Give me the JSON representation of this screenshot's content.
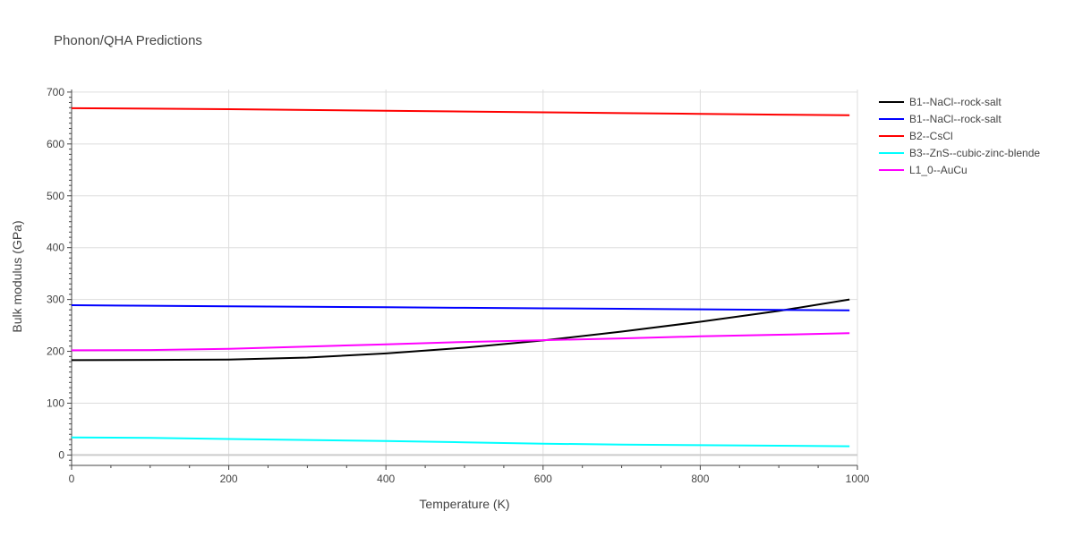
{
  "chart_data": {
    "type": "line",
    "title": "Phonon/QHA Predictions",
    "xlabel": "Temperature (K)",
    "ylabel": "Bulk modulus (GPa)",
    "xlim": [
      0,
      1000
    ],
    "ylim": [
      -20,
      705
    ],
    "xticks": [
      0,
      200,
      400,
      600,
      800,
      1000
    ],
    "yticks": [
      0,
      100,
      200,
      300,
      400,
      500,
      600,
      700
    ],
    "grid": true,
    "legend_position": "top-right",
    "series": [
      {
        "name": "B1--NaCl--rock-salt",
        "color": "#000000",
        "x": [
          0,
          100,
          200,
          300,
          400,
          500,
          600,
          700,
          800,
          900,
          990
        ],
        "y": [
          183,
          183.5,
          184,
          188,
          196,
          207,
          221,
          238,
          257,
          278,
          300
        ]
      },
      {
        "name": "B1--NaCl--rock-salt",
        "color": "#0000ff",
        "x": [
          0,
          100,
          200,
          300,
          400,
          500,
          600,
          700,
          800,
          900,
          990
        ],
        "y": [
          289,
          288,
          287,
          286,
          285,
          284,
          283,
          282,
          281,
          280,
          279
        ]
      },
      {
        "name": "B2--CsCl",
        "color": "#ff0000",
        "x": [
          0,
          100,
          200,
          300,
          400,
          500,
          600,
          700,
          800,
          900,
          990
        ],
        "y": [
          669,
          668,
          667,
          665.5,
          664,
          662.5,
          661,
          659.5,
          658,
          656.5,
          655.5
        ]
      },
      {
        "name": "B3--ZnS--cubic-zinc-blende",
        "color": "#00ffff",
        "x": [
          0,
          100,
          200,
          300,
          400,
          500,
          600,
          700,
          800,
          900,
          990
        ],
        "y": [
          34,
          33,
          31,
          29,
          27,
          24.5,
          22,
          20,
          19,
          18,
          17
        ]
      },
      {
        "name": "L1_0--AuCu",
        "color": "#ff00ff",
        "x": [
          0,
          100,
          200,
          300,
          400,
          500,
          600,
          700,
          800,
          900,
          990
        ],
        "y": [
          202,
          202.5,
          205,
          209,
          213.5,
          218,
          221.5,
          225,
          229,
          232,
          235
        ]
      }
    ]
  }
}
